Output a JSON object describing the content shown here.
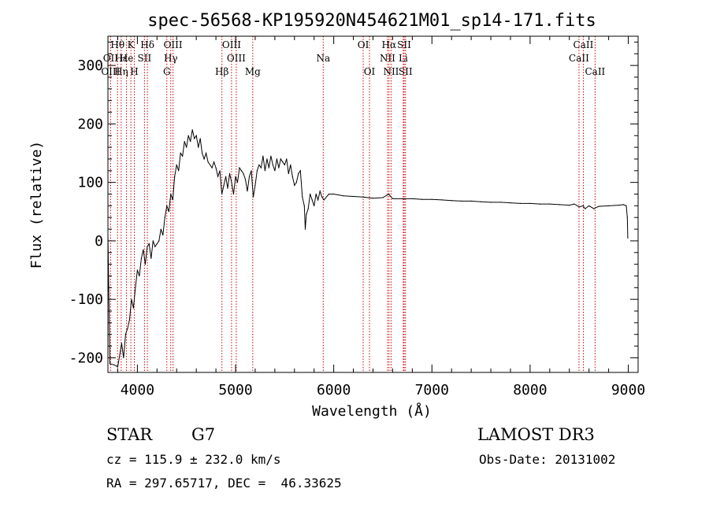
{
  "chart_data": {
    "type": "line",
    "title": "spec-56568-KP195920N454621M01_sp14-171.fits",
    "xlabel": "Wavelength (Å)",
    "ylabel": "Flux (relative)",
    "xlim": [
      3700,
      9100
    ],
    "ylim": [
      -225,
      350
    ],
    "xticks": [
      4000,
      5000,
      6000,
      7000,
      8000,
      9000
    ],
    "yticks": [
      -200,
      -100,
      0,
      100,
      200,
      300
    ],
    "grid": false,
    "line_color": "#000000",
    "marker_color": "#cc0000",
    "series": [
      {
        "values": [
          [
            3700,
            10
          ],
          [
            3720,
            -210
          ],
          [
            3760,
            -212
          ],
          [
            3800,
            -215
          ],
          [
            3820,
            -195
          ],
          [
            3840,
            -175
          ],
          [
            3860,
            -200
          ],
          [
            3880,
            -160
          ],
          [
            3900,
            -150
          ],
          [
            3920,
            -135
          ],
          [
            3940,
            -100
          ],
          [
            3960,
            -115
          ],
          [
            3980,
            -80
          ],
          [
            4000,
            -50
          ],
          [
            4020,
            -60
          ],
          [
            4040,
            -30
          ],
          [
            4060,
            -15
          ],
          [
            4080,
            -40
          ],
          [
            4100,
            -10
          ],
          [
            4120,
            -5
          ],
          [
            4140,
            -30
          ],
          [
            4160,
            0
          ],
          [
            4180,
            -10
          ],
          [
            4200,
            -5
          ],
          [
            4220,
            0
          ],
          [
            4240,
            20
          ],
          [
            4260,
            10
          ],
          [
            4280,
            40
          ],
          [
            4300,
            60
          ],
          [
            4320,
            50
          ],
          [
            4340,
            80
          ],
          [
            4360,
            70
          ],
          [
            4380,
            110
          ],
          [
            4400,
            130
          ],
          [
            4420,
            120
          ],
          [
            4440,
            150
          ],
          [
            4460,
            145
          ],
          [
            4480,
            170
          ],
          [
            4500,
            160
          ],
          [
            4520,
            180
          ],
          [
            4540,
            170
          ],
          [
            4560,
            190
          ],
          [
            4580,
            175
          ],
          [
            4600,
            180
          ],
          [
            4620,
            160
          ],
          [
            4640,
            175
          ],
          [
            4660,
            150
          ],
          [
            4680,
            140
          ],
          [
            4700,
            150
          ],
          [
            4720,
            135
          ],
          [
            4740,
            130
          ],
          [
            4760,
            125
          ],
          [
            4780,
            135
          ],
          [
            4800,
            125
          ],
          [
            4820,
            110
          ],
          [
            4840,
            120
          ],
          [
            4860,
            80
          ],
          [
            4880,
            95
          ],
          [
            4900,
            110
          ],
          [
            4920,
            90
          ],
          [
            4940,
            115
          ],
          [
            4960,
            100
          ],
          [
            4980,
            80
          ],
          [
            5000,
            110
          ],
          [
            5020,
            100
          ],
          [
            5040,
            125
          ],
          [
            5060,
            120
          ],
          [
            5080,
            115
          ],
          [
            5100,
            105
          ],
          [
            5120,
            85
          ],
          [
            5140,
            110
          ],
          [
            5160,
            120
          ],
          [
            5180,
            75
          ],
          [
            5200,
            95
          ],
          [
            5220,
            120
          ],
          [
            5240,
            130
          ],
          [
            5260,
            125
          ],
          [
            5280,
            145
          ],
          [
            5300,
            120
          ],
          [
            5320,
            140
          ],
          [
            5340,
            125
          ],
          [
            5360,
            145
          ],
          [
            5380,
            130
          ],
          [
            5400,
            120
          ],
          [
            5420,
            140
          ],
          [
            5440,
            125
          ],
          [
            5460,
            140
          ],
          [
            5480,
            135
          ],
          [
            5500,
            130
          ],
          [
            5520,
            140
          ],
          [
            5540,
            115
          ],
          [
            5560,
            130
          ],
          [
            5580,
            110
          ],
          [
            5600,
            95
          ],
          [
            5620,
            100
          ],
          [
            5640,
            115
          ],
          [
            5660,
            120
          ],
          [
            5680,
            75
          ],
          [
            5700,
            60
          ],
          [
            5710,
            20
          ],
          [
            5720,
            45
          ],
          [
            5740,
            55
          ],
          [
            5760,
            80
          ],
          [
            5780,
            70
          ],
          [
            5800,
            60
          ],
          [
            5820,
            80
          ],
          [
            5840,
            70
          ],
          [
            5860,
            85
          ],
          [
            5880,
            75
          ],
          [
            5900,
            70
          ],
          [
            5950,
            80
          ],
          [
            6000,
            80
          ],
          [
            6100,
            77
          ],
          [
            6200,
            76
          ],
          [
            6300,
            75
          ],
          [
            6400,
            73
          ],
          [
            6500,
            74
          ],
          [
            6560,
            80
          ],
          [
            6600,
            72
          ],
          [
            6700,
            72
          ],
          [
            6800,
            72
          ],
          [
            6900,
            71
          ],
          [
            7000,
            71
          ],
          [
            7100,
            70
          ],
          [
            7200,
            69
          ],
          [
            7300,
            68
          ],
          [
            7400,
            68
          ],
          [
            7500,
            67
          ],
          [
            7600,
            66
          ],
          [
            7700,
            66
          ],
          [
            7800,
            65
          ],
          [
            7900,
            64
          ],
          [
            8000,
            64
          ],
          [
            8100,
            63
          ],
          [
            8200,
            63
          ],
          [
            8300,
            62
          ],
          [
            8400,
            61
          ],
          [
            8450,
            63
          ],
          [
            8500,
            58
          ],
          [
            8540,
            60
          ],
          [
            8560,
            55
          ],
          [
            8600,
            60
          ],
          [
            8650,
            55
          ],
          [
            8700,
            59
          ],
          [
            8800,
            60
          ],
          [
            8900,
            61
          ],
          [
            8950,
            62
          ],
          [
            8980,
            60
          ],
          [
            8990,
            40
          ],
          [
            8995,
            5
          ]
        ]
      }
    ],
    "annotations": [
      {
        "label": "Hθ",
        "x": 3798,
        "row": 0
      },
      {
        "label": "K",
        "x": 3934,
        "row": 0
      },
      {
        "label": "Hδ",
        "x": 4102,
        "row": 0
      },
      {
        "label": "OIII",
        "x": 4363,
        "row": 0
      },
      {
        "label": "OIII",
        "x": 4959,
        "row": 0
      },
      {
        "label": "OI",
        "x": 6300,
        "row": 0
      },
      {
        "label": "Hα",
        "x": 6563,
        "row": 0
      },
      {
        "label": "SII",
        "x": 6717,
        "row": 0
      },
      {
        "label": "CaII",
        "x": 8542,
        "row": 0
      },
      {
        "label": "OII",
        "x": 3727,
        "row": 1
      },
      {
        "label": "Hε",
        "x": 3835,
        "row": 1
      },
      {
        "label": "He",
        "x": 3889,
        "row": 1
      },
      {
        "label": "SII",
        "x": 4072,
        "row": 1
      },
      {
        "label": "Hγ",
        "x": 4340,
        "row": 1
      },
      {
        "label": "OIII",
        "x": 5007,
        "row": 1
      },
      {
        "label": "Na",
        "x": 5893,
        "row": 1
      },
      {
        "label": "NII",
        "x": 6548,
        "row": 1
      },
      {
        "label": "Li",
        "x": 6708,
        "row": 1
      },
      {
        "label": "CaII",
        "x": 8498,
        "row": 1
      },
      {
        "label": "OIII",
        "x": 3727,
        "row": 2
      },
      {
        "label": "Hη",
        "x": 3835,
        "row": 2
      },
      {
        "label": "H",
        "x": 3969,
        "row": 2
      },
      {
        "label": "G",
        "x": 4300,
        "row": 2
      },
      {
        "label": "Hβ",
        "x": 4861,
        "row": 2
      },
      {
        "label": "Mg",
        "x": 5175,
        "row": 2
      },
      {
        "label": "OI",
        "x": 6364,
        "row": 2
      },
      {
        "label": "NII",
        "x": 6584,
        "row": 2
      },
      {
        "label": "SII",
        "x": 6731,
        "row": 2
      },
      {
        "label": "CaII",
        "x": 8662,
        "row": 2
      }
    ]
  },
  "footer": {
    "object_class": "STAR",
    "subclass": "G7",
    "survey": "LAMOST DR3",
    "cz": "cz = 115.9 ± 232.0 km/s",
    "obs_date": "Obs-Date: 20131002",
    "coords": "RA = 297.65717, DEC =  46.33625"
  }
}
